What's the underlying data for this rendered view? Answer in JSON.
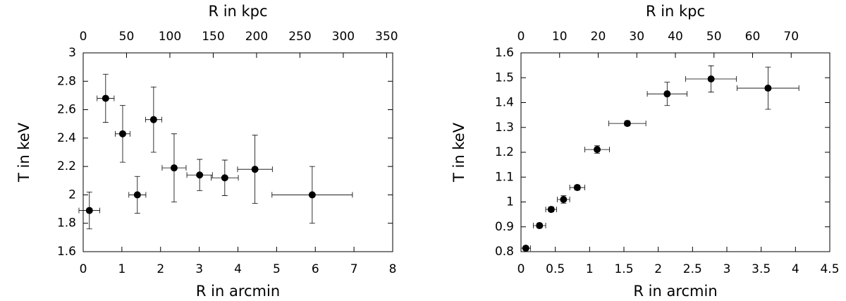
{
  "chart_data": [
    {
      "type": "scatter",
      "xlabel": "R in arcmin",
      "ylabel": "T in keV",
      "x2label": "R in kpc",
      "color": "#000000",
      "x": [
        0.16,
        0.58,
        1.02,
        1.4,
        1.82,
        2.35,
        3.01,
        3.66,
        4.44,
        5.92
      ],
      "values": [
        1.89,
        2.68,
        2.43,
        2.0,
        2.53,
        2.19,
        2.14,
        2.12,
        2.18,
        2.0
      ],
      "xerr": [
        0.27,
        0.22,
        0.19,
        0.22,
        0.21,
        0.31,
        0.33,
        0.35,
        0.45,
        1.04
      ],
      "yerr": [
        0.13,
        0.17,
        0.2,
        0.13,
        0.23,
        0.24,
        0.11,
        0.125,
        0.24,
        0.2
      ],
      "xlim": [
        0,
        8
      ],
      "xticks": [
        0,
        1,
        2,
        3,
        4,
        5,
        6,
        7,
        8
      ],
      "ylim": [
        1.6,
        3
      ],
      "yticks": [
        1.6,
        1.8,
        2,
        2.2,
        2.4,
        2.6,
        2.8,
        3
      ],
      "x2lim": [
        0,
        357
      ],
      "x2ticks": [
        0,
        50,
        100,
        150,
        200,
        250,
        300,
        350
      ]
    },
    {
      "type": "scatter",
      "xlabel": "R in arcmin",
      "ylabel": "T in keV",
      "x2label": "R in kpc",
      "color": "#000000",
      "x": [
        0.07,
        0.27,
        0.44,
        0.62,
        0.82,
        1.11,
        1.55,
        2.13,
        2.77,
        3.6
      ],
      "values": [
        0.814,
        0.905,
        0.97,
        1.01,
        1.058,
        1.211,
        1.316,
        1.435,
        1.495,
        1.458
      ],
      "xerr": [
        0.07,
        0.09,
        0.08,
        0.09,
        0.11,
        0.18,
        0.27,
        0.29,
        0.37,
        0.45
      ],
      "yerr": [
        0.005,
        0.01,
        0.01,
        0.015,
        0.01,
        0.015,
        0.01,
        0.047,
        0.053,
        0.085
      ],
      "xlim": [
        0,
        4.5
      ],
      "xticks": [
        0,
        0.5,
        1,
        1.5,
        2,
        2.5,
        3,
        3.5,
        4,
        4.5
      ],
      "ylim": [
        0.8,
        1.6
      ],
      "yticks": [
        0.8,
        0.9,
        1,
        1.1,
        1.2,
        1.3,
        1.4,
        1.5,
        1.6
      ],
      "x2lim": [
        0,
        80
      ],
      "x2ticks": [
        0,
        10,
        20,
        30,
        40,
        50,
        60,
        70
      ]
    }
  ]
}
